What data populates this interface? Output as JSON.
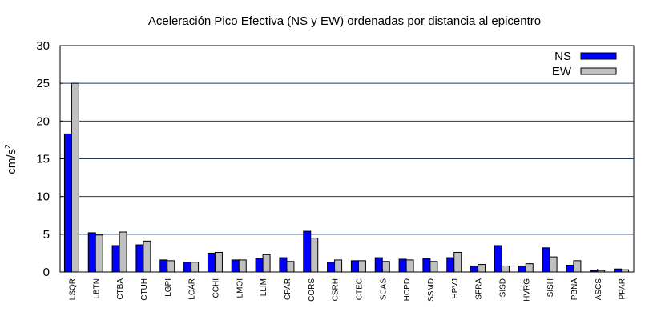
{
  "chart_data": {
    "type": "bar",
    "title": "Aceleración Pico Efectiva (NS y EW) ordenadas por distancia al epicentro",
    "xlabel": "",
    "ylabel": "cm/s",
    "ylabel_superscript": "2",
    "ylim": [
      0,
      30
    ],
    "yticks": [
      "0",
      "5",
      "10",
      "15",
      "20",
      "25",
      "30"
    ],
    "grid": "horizontal",
    "legend_position": "top-right",
    "categories": [
      "LSQR",
      "LBTN",
      "CTBA",
      "CTUH",
      "LGPI",
      "LCAR",
      "CCHI",
      "LMOI",
      "LLIM",
      "CPAR",
      "CORS",
      "CSRH",
      "CTEC",
      "SCAS",
      "HCPD",
      "SSMD",
      "HPVJ",
      "SFRA",
      "SISD",
      "HVRG",
      "SISH",
      "PBNA",
      "ASCS",
      "PPAR"
    ],
    "series": [
      {
        "name": "NS",
        "color": "#0000ff",
        "values": [
          18.3,
          5.2,
          3.5,
          3.6,
          1.6,
          1.3,
          2.5,
          1.6,
          1.8,
          1.9,
          5.4,
          1.3,
          1.5,
          1.9,
          1.7,
          1.8,
          1.9,
          0.8,
          3.5,
          0.8,
          3.2,
          0.9,
          0.2,
          0.4
        ]
      },
      {
        "name": "EW",
        "color": "#c0c0c0",
        "values": [
          25.0,
          4.9,
          5.3,
          4.1,
          1.5,
          1.3,
          2.6,
          1.6,
          2.3,
          1.4,
          4.5,
          1.6,
          1.5,
          1.4,
          1.6,
          1.4,
          2.6,
          1.0,
          0.8,
          1.1,
          2.0,
          1.5,
          0.2,
          0.3
        ]
      }
    ]
  }
}
